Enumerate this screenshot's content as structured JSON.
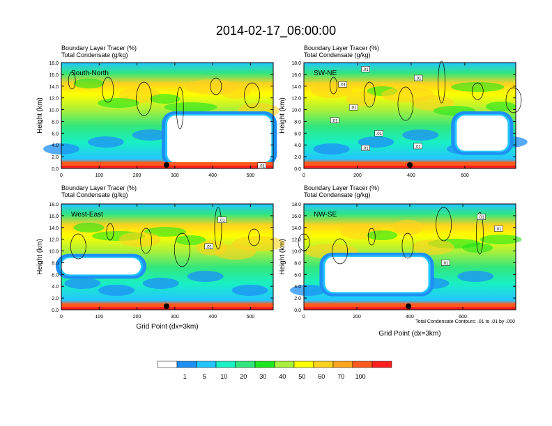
{
  "title": "2014-02-17_06:00:00",
  "panel_header_line1": "Boundary Layer Tracer   (%)",
  "panel_header_line2": "Total Condensate   (g/kg)",
  "ylabel": "Height (km)",
  "xlabel": "Grid Point (dx=3km)",
  "contour_note": "Total Condensate Contours: .01 to .01 by .000",
  "contour_label": ".01",
  "colors": {
    "c0": "#ffffff",
    "c1": "#1e8ff5",
    "c2": "#23c6ff",
    "c3": "#19f0c3",
    "c4": "#32e67d",
    "c5": "#1ee61e",
    "c6": "#a8f03c",
    "c7": "#ffff00",
    "c8": "#ffd21e",
    "c9": "#ffa51e",
    "c10": "#ff5a1e",
    "c11": "#ff1e1e"
  },
  "colorbar": {
    "labels": [
      "1",
      "5",
      "10",
      "20",
      "30",
      "40",
      "50",
      "60",
      "70",
      "100"
    ],
    "colors": [
      "#ffffff",
      "#1e8ff5",
      "#23c6ff",
      "#19f0c3",
      "#32e67d",
      "#1ee61e",
      "#a8f03c",
      "#ffff00",
      "#ffd21e",
      "#ffa51e",
      "#ff5a1e",
      "#ff1e1e"
    ]
  },
  "chart_data": [
    {
      "type": "heatmap",
      "name": "South-North",
      "ylim": [
        0,
        18
      ],
      "yticks": [
        "0.0",
        "2.0",
        "4.0",
        "6.0",
        "8.0",
        "10.0",
        "12.0",
        "14.0",
        "16.0",
        "18.0"
      ],
      "xlim": [
        0,
        560
      ],
      "xticks": [
        0,
        100,
        200,
        300,
        400,
        500
      ],
      "marker_x": 278,
      "clear_region": {
        "x": [
          280,
          555
        ],
        "y": [
          1.0,
          9.0
        ]
      },
      "contour_labels": [
        {
          "x": 530,
          "y": 0.5
        }
      ]
    },
    {
      "type": "heatmap",
      "name": "SW-NE",
      "ylim": [
        0,
        18
      ],
      "yticks": [
        "0.0",
        "2.0",
        "4.0",
        "6.0",
        "8.0",
        "10.0",
        "12.0",
        "14.0",
        "16.0",
        "18.0"
      ],
      "xlim": [
        0,
        790
      ],
      "xticks": [
        0,
        200,
        400,
        600
      ],
      "marker_x": 395,
      "clear_region": {
        "x": [
          570,
          760
        ],
        "y": [
          3.0,
          9.0
        ]
      },
      "contour_labels": [
        {
          "x": 230,
          "y": 16.9
        },
        {
          "x": 145,
          "y": 14.3
        },
        {
          "x": 185,
          "y": 10.4
        },
        {
          "x": 115,
          "y": 8.2
        },
        {
          "x": 280,
          "y": 6.0
        },
        {
          "x": 230,
          "y": 3.5
        },
        {
          "x": 427,
          "y": 15.4
        },
        {
          "x": 425,
          "y": 3.8
        }
      ]
    },
    {
      "type": "heatmap",
      "name": "West-East",
      "ylim": [
        0,
        18
      ],
      "yticks": [
        "0.0",
        "2.0",
        "4.0",
        "6.0",
        "8.0",
        "10.0",
        "12.0",
        "14.0",
        "16.0",
        "18.0"
      ],
      "xlim": [
        0,
        560
      ],
      "xticks": [
        0,
        100,
        200,
        300,
        400,
        500
      ],
      "marker_x": 278,
      "clear_region": {
        "x": [
          0,
          210
        ],
        "y": [
          6.0,
          8.8
        ]
      },
      "contour_labels": [
        {
          "x": 425,
          "y": 15.3
        },
        {
          "x": 390,
          "y": 10.8
        }
      ]
    },
    {
      "type": "heatmap",
      "name": "NW-SE",
      "ylim": [
        0,
        18
      ],
      "yticks": [
        "0.0",
        "2.0",
        "4.0",
        "6.0",
        "8.0",
        "10.0",
        "12.0",
        "14.0",
        "16.0",
        "18.0"
      ],
      "xlim": [
        0,
        800
      ],
      "xticks": [
        0,
        200,
        400,
        600
      ],
      "marker_x": 395,
      "clear_region": {
        "x": [
          80,
          470
        ],
        "y": [
          3.0,
          9.0
        ]
      },
      "contour_labels": [
        {
          "x": 670,
          "y": 15.8
        },
        {
          "x": 735,
          "y": 13.8
        },
        {
          "x": 535,
          "y": 8.0
        }
      ]
    }
  ]
}
